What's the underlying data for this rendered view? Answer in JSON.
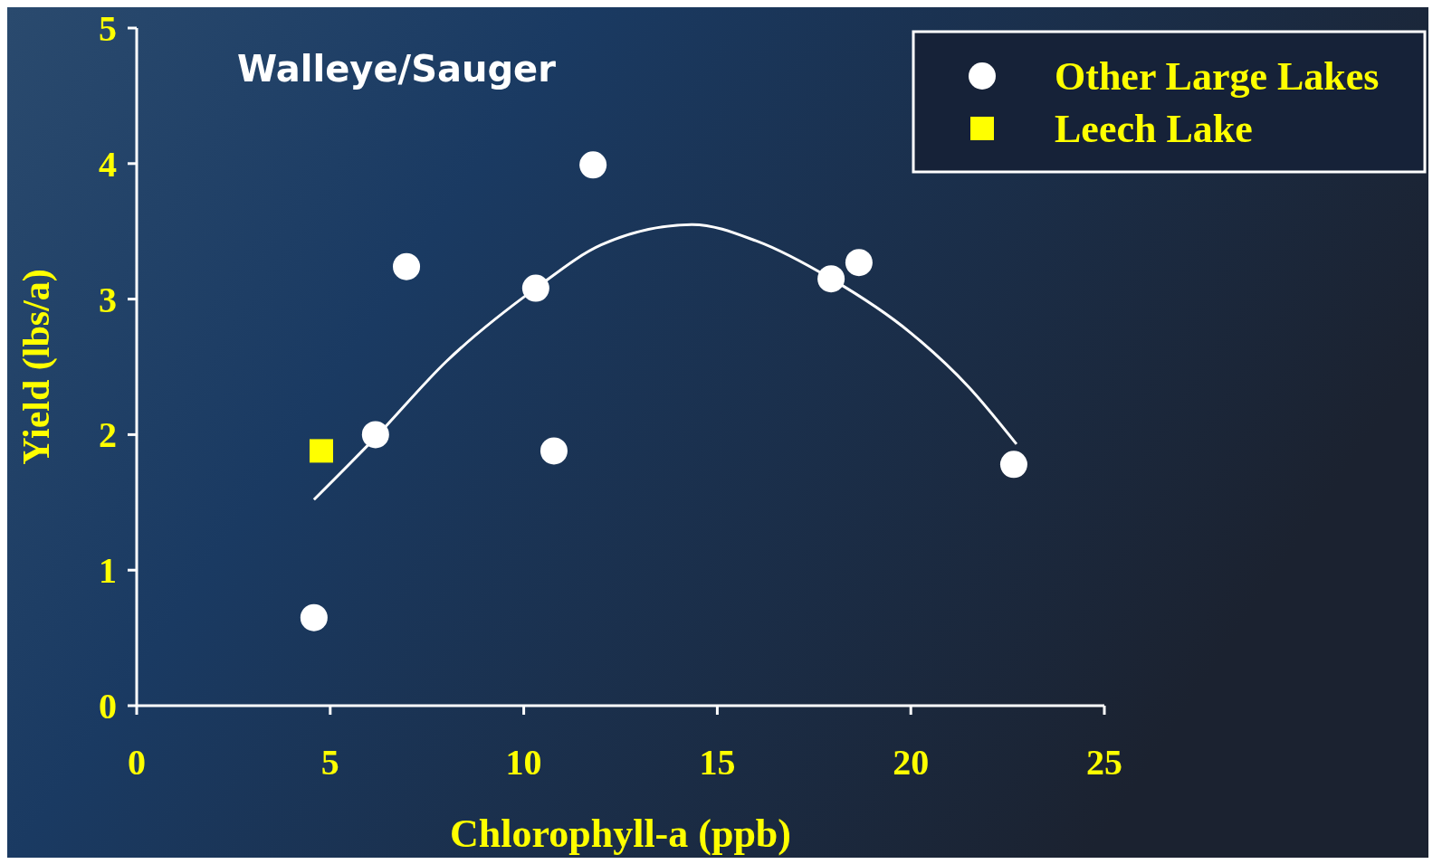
{
  "chart_data": {
    "type": "scatter",
    "title": "Walleye/Sauger",
    "xlabel": "Chlorophyll-a (ppb)",
    "ylabel": "Yield (lbs/a)",
    "xlim": [
      0,
      25
    ],
    "xticks": [
      0,
      5,
      10,
      15,
      20,
      25
    ],
    "ylim": [
      0,
      5
    ],
    "yticks": [
      0,
      1,
      2,
      3,
      4,
      5
    ],
    "grid": false,
    "legend": "top right",
    "series": [
      {
        "name": "Other Large Lakes",
        "marker": "circle",
        "color": "#ffffff",
        "x": [
          4.58,
          6.17,
          6.97,
          10.31,
          10.78,
          11.79,
          17.94,
          18.66,
          22.66
        ],
        "values": [
          0.65,
          2.0,
          3.24,
          3.08,
          1.88,
          3.99,
          3.15,
          3.27,
          1.78
        ]
      },
      {
        "name": "Leech Lake",
        "marker": "square",
        "color": "#ffff00",
        "x": [
          4.77
        ],
        "values": [
          1.88
        ]
      },
      {
        "type": "line",
        "marker": "none",
        "line_style": "solid",
        "color": "#ffffff",
        "x": [
          4.58,
          6.17,
          8,
          10.31,
          12,
          14.36,
          16,
          17.94,
          20,
          21.5,
          22.73
        ],
        "values": [
          1.52,
          1.98,
          2.54,
          3.08,
          3.4,
          3.55,
          3.43,
          3.15,
          2.75,
          2.35,
          1.93
        ]
      }
    ]
  }
}
